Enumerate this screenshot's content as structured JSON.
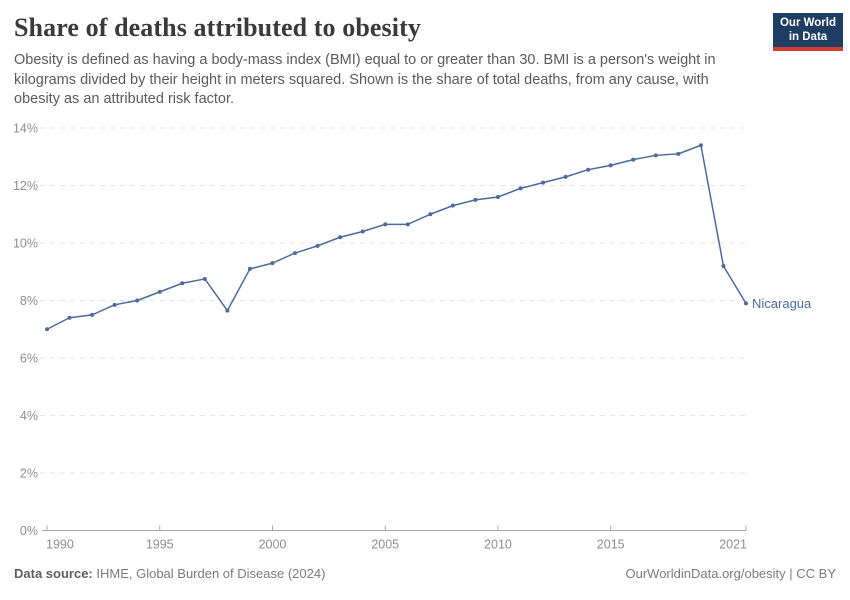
{
  "header": {
    "title": "Share of deaths attributed to obesity",
    "subtitle": "Obesity is defined as having a body-mass index (BMI) equal to or greater than 30. BMI is a person's weight in kilograms divided by their height in meters squared. Shown is the share of total deaths, from any cause, with obesity as an attributed risk factor.",
    "logo": {
      "line1": "Our World",
      "line2": "in Data"
    }
  },
  "chart_data": {
    "type": "line",
    "title": "Share of deaths attributed to obesity",
    "xlabel": "",
    "ylabel": "",
    "xlim": [
      1990,
      2021
    ],
    "ylim": [
      0,
      14
    ],
    "grid": "horizontal-dashed",
    "legend_position": "end-of-line-label",
    "x_tick_years": [
      1990,
      1995,
      2000,
      2005,
      2010,
      2015,
      2021
    ],
    "y_tick_values": [
      0,
      2,
      4,
      6,
      8,
      10,
      12,
      14
    ],
    "y_tick_labels": [
      "0%",
      "2%",
      "4%",
      "6%",
      "8%",
      "10%",
      "12%",
      "14%"
    ],
    "series": [
      {
        "name": "Nicaragua",
        "x": [
          1990,
          1991,
          1992,
          1993,
          1994,
          1995,
          1996,
          1997,
          1998,
          1999,
          2000,
          2001,
          2002,
          2003,
          2004,
          2005,
          2006,
          2007,
          2008,
          2009,
          2010,
          2011,
          2012,
          2013,
          2014,
          2015,
          2016,
          2017,
          2018,
          2019,
          2020,
          2021
        ],
        "values": [
          7.0,
          7.4,
          7.5,
          7.85,
          8.0,
          8.3,
          8.6,
          8.75,
          7.65,
          9.1,
          9.3,
          9.65,
          9.9,
          10.2,
          10.4,
          10.65,
          10.65,
          11.0,
          11.3,
          11.5,
          11.6,
          11.9,
          12.1,
          12.3,
          12.55,
          12.7,
          12.9,
          13.05,
          13.1,
          13.4,
          9.2,
          7.9
        ]
      }
    ],
    "end_label": "Nicaragua"
  },
  "footer": {
    "data_source_label": "Data source:",
    "data_source_value": " IHME, Global Burden of Disease (2024)",
    "attribution": "OurWorldinData.org/obesity | CC BY"
  },
  "colors": {
    "line": "#4c6a9c",
    "logo_navy": "#1d3d63",
    "logo_red": "#d93a34",
    "gridline": "#e4e4e4",
    "axis": "#a8a8a8",
    "tick_text": "#8e8e8e",
    "title_text": "#3a3a3a",
    "subtitle_text": "#5a5a5a"
  }
}
